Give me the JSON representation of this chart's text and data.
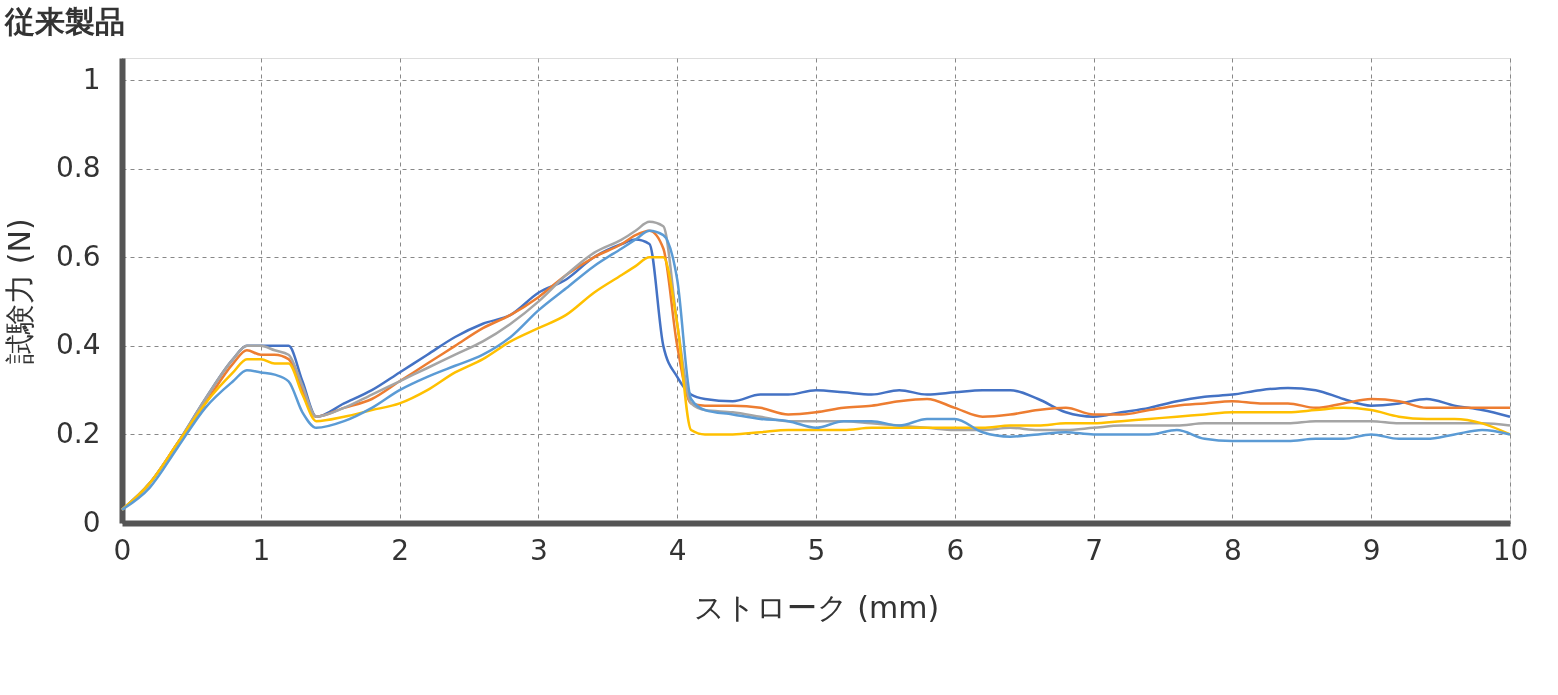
{
  "chart_data": {
    "type": "line",
    "title": "従来製品",
    "xlabel": "ストローク (mm)",
    "ylabel": "試験力 (N)",
    "x": [
      0,
      0.2,
      0.4,
      0.6,
      0.8,
      0.9,
      1.0,
      1.1,
      1.2,
      1.3,
      1.4,
      1.6,
      1.8,
      2.0,
      2.2,
      2.4,
      2.6,
      2.8,
      3.0,
      3.2,
      3.4,
      3.6,
      3.7,
      3.8,
      3.9,
      4.0,
      4.1,
      4.2,
      4.4,
      4.6,
      4.8,
      5.0,
      5.2,
      5.4,
      5.6,
      5.8,
      6.0,
      6.2,
      6.4,
      6.6,
      6.8,
      7.0,
      7.2,
      7.4,
      7.6,
      7.8,
      8.0,
      8.2,
      8.4,
      8.6,
      8.8,
      9.0,
      9.2,
      9.4,
      9.6,
      9.8,
      10.0
    ],
    "series": [
      {
        "color": "#4472c4",
        "values": [
          0.03,
          0.09,
          0.18,
          0.28,
          0.37,
          0.4,
          0.4,
          0.4,
          0.4,
          0.32,
          0.24,
          0.27,
          0.3,
          0.34,
          0.38,
          0.42,
          0.45,
          0.47,
          0.52,
          0.55,
          0.6,
          0.63,
          0.64,
          0.63,
          0.4,
          0.33,
          0.29,
          0.28,
          0.275,
          0.29,
          0.29,
          0.3,
          0.295,
          0.29,
          0.3,
          0.29,
          0.295,
          0.3,
          0.3,
          0.28,
          0.25,
          0.24,
          0.25,
          0.26,
          0.275,
          0.285,
          0.29,
          0.3,
          0.305,
          0.3,
          0.28,
          0.265,
          0.27,
          0.28,
          0.265,
          0.255,
          0.24
        ]
      },
      {
        "color": "#ed7d31",
        "values": [
          0.03,
          0.09,
          0.18,
          0.27,
          0.36,
          0.39,
          0.38,
          0.38,
          0.37,
          0.3,
          0.24,
          0.26,
          0.28,
          0.32,
          0.36,
          0.4,
          0.44,
          0.47,
          0.51,
          0.56,
          0.6,
          0.63,
          0.65,
          0.66,
          0.62,
          0.4,
          0.27,
          0.265,
          0.265,
          0.26,
          0.245,
          0.25,
          0.26,
          0.265,
          0.275,
          0.28,
          0.26,
          0.24,
          0.245,
          0.255,
          0.26,
          0.245,
          0.245,
          0.255,
          0.265,
          0.27,
          0.275,
          0.27,
          0.27,
          0.26,
          0.27,
          0.28,
          0.275,
          0.26,
          0.26,
          0.26,
          0.26
        ]
      },
      {
        "color": "#a5a5a5",
        "values": [
          0.03,
          0.09,
          0.18,
          0.28,
          0.37,
          0.4,
          0.4,
          0.39,
          0.38,
          0.31,
          0.24,
          0.26,
          0.29,
          0.32,
          0.35,
          0.38,
          0.41,
          0.45,
          0.5,
          0.56,
          0.61,
          0.64,
          0.66,
          0.68,
          0.67,
          0.45,
          0.27,
          0.255,
          0.25,
          0.24,
          0.23,
          0.23,
          0.23,
          0.225,
          0.22,
          0.215,
          0.21,
          0.21,
          0.215,
          0.21,
          0.21,
          0.215,
          0.22,
          0.22,
          0.22,
          0.225,
          0.225,
          0.225,
          0.225,
          0.23,
          0.23,
          0.23,
          0.225,
          0.225,
          0.225,
          0.225,
          0.22
        ]
      },
      {
        "color": "#ffc000",
        "values": [
          0.03,
          0.09,
          0.18,
          0.27,
          0.34,
          0.37,
          0.37,
          0.36,
          0.36,
          0.29,
          0.23,
          0.24,
          0.255,
          0.27,
          0.3,
          0.34,
          0.37,
          0.41,
          0.44,
          0.47,
          0.52,
          0.56,
          0.58,
          0.6,
          0.6,
          0.45,
          0.21,
          0.2,
          0.2,
          0.205,
          0.21,
          0.21,
          0.21,
          0.215,
          0.215,
          0.215,
          0.215,
          0.215,
          0.22,
          0.22,
          0.225,
          0.225,
          0.23,
          0.235,
          0.24,
          0.245,
          0.25,
          0.25,
          0.25,
          0.255,
          0.26,
          0.255,
          0.24,
          0.235,
          0.235,
          0.225,
          0.2
        ]
      },
      {
        "color": "#5b9bd5",
        "values": [
          0.03,
          0.08,
          0.17,
          0.26,
          0.32,
          0.345,
          0.34,
          0.335,
          0.32,
          0.25,
          0.215,
          0.23,
          0.26,
          0.3,
          0.33,
          0.355,
          0.38,
          0.42,
          0.48,
          0.53,
          0.58,
          0.62,
          0.64,
          0.66,
          0.65,
          0.55,
          0.28,
          0.255,
          0.245,
          0.235,
          0.23,
          0.215,
          0.23,
          0.23,
          0.22,
          0.235,
          0.235,
          0.205,
          0.195,
          0.2,
          0.205,
          0.2,
          0.2,
          0.2,
          0.21,
          0.19,
          0.185,
          0.185,
          0.185,
          0.19,
          0.19,
          0.2,
          0.19,
          0.19,
          0.2,
          0.21,
          0.2
        ]
      }
    ],
    "xlim": [
      0,
      10
    ],
    "xticks": [
      0,
      1,
      2,
      3,
      4,
      5,
      6,
      7,
      8,
      9,
      10
    ],
    "ylim": [
      0,
      1.05
    ],
    "yticks": [
      0,
      0.2,
      0.4,
      0.6,
      0.8,
      1
    ],
    "grid": true,
    "legend": false,
    "marker": "none",
    "line_style": "solid"
  }
}
